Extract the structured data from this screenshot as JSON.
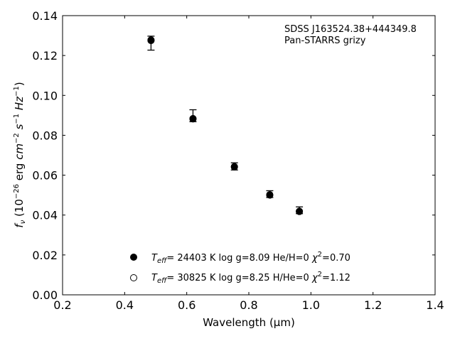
{
  "chart_data": {
    "type": "scatter",
    "xlabel": "Wavelength (μm)",
    "ylabel": "f_ν (10^{-26} erg cm^{-2} s^{-1} Hz^{-1})",
    "xlim": [
      0.2,
      1.4
    ],
    "ylim": [
      0.0,
      0.14
    ],
    "xticks": [
      0.2,
      0.4,
      0.6,
      0.8,
      1.0,
      1.2,
      1.4
    ],
    "xtick_labels": [
      "0.2",
      "0.4",
      "0.6",
      "0.8",
      "1.0",
      "1.2",
      "1.4"
    ],
    "yticks": [
      0.0,
      0.02,
      0.04,
      0.06,
      0.08,
      0.1,
      0.12,
      0.14
    ],
    "ytick_labels": [
      "0.00",
      "0.02",
      "0.04",
      "0.06",
      "0.08",
      "0.10",
      "0.12",
      "0.14"
    ],
    "grid": false,
    "annotation": [
      "SDSS J163524.38+444349.8",
      "Pan-STARRS grizy"
    ],
    "observed": {
      "x": [
        0.4849,
        0.6201,
        0.7535,
        0.8674,
        0.9628
      ],
      "y": [
        0.1262,
        0.0898,
        0.0644,
        0.0505,
        0.0424
      ],
      "yerr": [
        0.0035,
        0.003,
        0.0018,
        0.0017,
        0.0017
      ]
    },
    "series": [
      {
        "marker": "filled",
        "x": [
          0.4849,
          0.6201,
          0.7535,
          0.8674,
          0.9628
        ],
        "y": [
          0.1275,
          0.0884,
          0.0643,
          0.0502,
          0.0419
        ]
      },
      {
        "marker": "open",
        "x": [
          0.4849,
          0.6201,
          0.7535,
          0.8674,
          0.9628
        ],
        "y": [
          0.1278,
          0.0882,
          0.0641,
          0.05,
          0.0418
        ]
      }
    ],
    "legend": {
      "placement": "lower-center",
      "entries": [
        {
          "marker": "filled",
          "teff": "24403",
          "logg": "8.09",
          "hehe": "0",
          "chi2": "0.70"
        },
        {
          "marker": "open",
          "teff": "30825",
          "logg": "8.25",
          "hehe": "0",
          "chi2": "1.12"
        }
      ]
    }
  }
}
